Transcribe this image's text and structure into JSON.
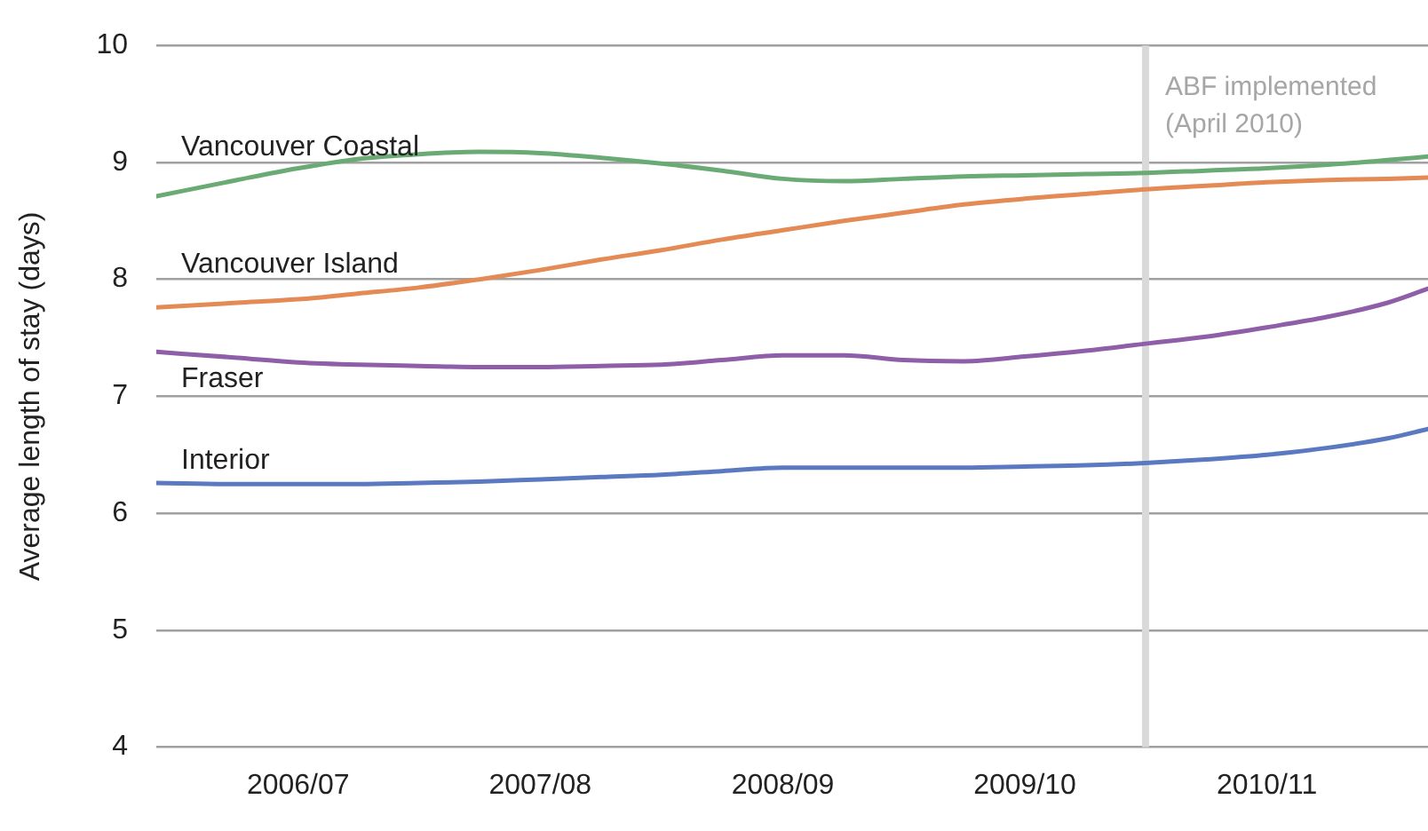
{
  "chart_data": {
    "type": "line",
    "ylabel": "Average length of stay (days)",
    "x": [
      "2006-03",
      "2006-07",
      "2006-10",
      "2007-01",
      "2007-04",
      "2007-07",
      "2007-10",
      "2008-01",
      "2008-04",
      "2008-07",
      "2008-10",
      "2009-01",
      "2009-04",
      "2009-07",
      "2009-10",
      "2010-01",
      "2010-04",
      "2010-07",
      "2010-10",
      "2011-01",
      "2011-04",
      "2011-06"
    ],
    "xlim": [
      "2006-03",
      "2011-06"
    ],
    "xticks": [
      {
        "value": "2006-10",
        "label": "2006/07"
      },
      {
        "value": "2007-10",
        "label": "2007/08"
      },
      {
        "value": "2008-10",
        "label": "2008/09"
      },
      {
        "value": "2009-10",
        "label": "2009/10"
      },
      {
        "value": "2010-10",
        "label": "2010/11"
      }
    ],
    "ylim": [
      4,
      10
    ],
    "yticks": [
      4,
      5,
      6,
      7,
      8,
      9,
      10
    ],
    "grid": "y",
    "legend": false,
    "marker": "none",
    "line_style": "solid",
    "series": [
      {
        "name": "Vancouver Coastal",
        "color": "#6aaa74",
        "values": [
          8.71,
          8.85,
          8.95,
          9.03,
          9.07,
          9.09,
          9.08,
          9.04,
          8.99,
          8.93,
          8.86,
          8.84,
          8.86,
          8.88,
          8.89,
          8.9,
          8.91,
          8.93,
          8.95,
          8.98,
          9.02,
          9.05
        ]
      },
      {
        "name": "Vancouver Island",
        "color": "#e38a55",
        "values": [
          7.76,
          7.8,
          7.83,
          7.88,
          7.93,
          8.0,
          8.08,
          8.17,
          8.25,
          8.34,
          8.42,
          8.5,
          8.57,
          8.64,
          8.69,
          8.73,
          8.77,
          8.8,
          8.83,
          8.85,
          8.86,
          8.87
        ]
      },
      {
        "name": "Fraser",
        "color": "#8e5ea8",
        "values": [
          7.38,
          7.33,
          7.29,
          7.27,
          7.26,
          7.25,
          7.25,
          7.26,
          7.27,
          7.31,
          7.35,
          7.35,
          7.31,
          7.3,
          7.34,
          7.39,
          7.45,
          7.51,
          7.59,
          7.68,
          7.8,
          7.92
        ]
      },
      {
        "name": "Interior",
        "color": "#5b79c0",
        "values": [
          6.26,
          6.25,
          6.25,
          6.25,
          6.26,
          6.27,
          6.29,
          6.31,
          6.33,
          6.36,
          6.39,
          6.39,
          6.39,
          6.39,
          6.4,
          6.41,
          6.43,
          6.46,
          6.5,
          6.56,
          6.64,
          6.72
        ]
      }
    ],
    "ref_lines": [
      {
        "axis": "x",
        "value": "2010-04",
        "label": "ABF implemented (April 2010)",
        "color": "#d9d9d9"
      }
    ]
  }
}
